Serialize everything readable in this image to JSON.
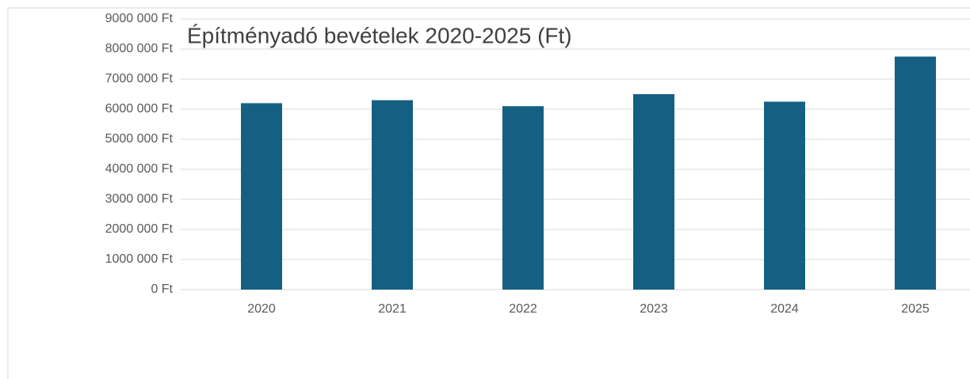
{
  "chart_data": {
    "type": "bar",
    "title": "Építményadó bevételek 2020-2025 (Ft)",
    "categories": [
      "2020",
      "2021",
      "2022",
      "2023",
      "2024",
      "2025"
    ],
    "values": [
      6200000,
      6300000,
      6100000,
      6500000,
      6250000,
      7750000
    ],
    "color": "#156082",
    "ylim": [
      0,
      9000000
    ],
    "yticks": [
      {
        "value": 0,
        "label": "0 Ft"
      },
      {
        "value": 1000000,
        "label": "1000 000 Ft"
      },
      {
        "value": 2000000,
        "label": "2000 000 Ft"
      },
      {
        "value": 3000000,
        "label": "3000 000 Ft"
      },
      {
        "value": 4000000,
        "label": "4000 000 Ft"
      },
      {
        "value": 5000000,
        "label": "5000 000 Ft"
      },
      {
        "value": 6000000,
        "label": "6000 000 Ft"
      },
      {
        "value": 7000000,
        "label": "7000 000 Ft"
      },
      {
        "value": 8000000,
        "label": "8000 000 Ft"
      },
      {
        "value": 9000000,
        "label": "9000 000 Ft"
      }
    ],
    "grid": true
  }
}
